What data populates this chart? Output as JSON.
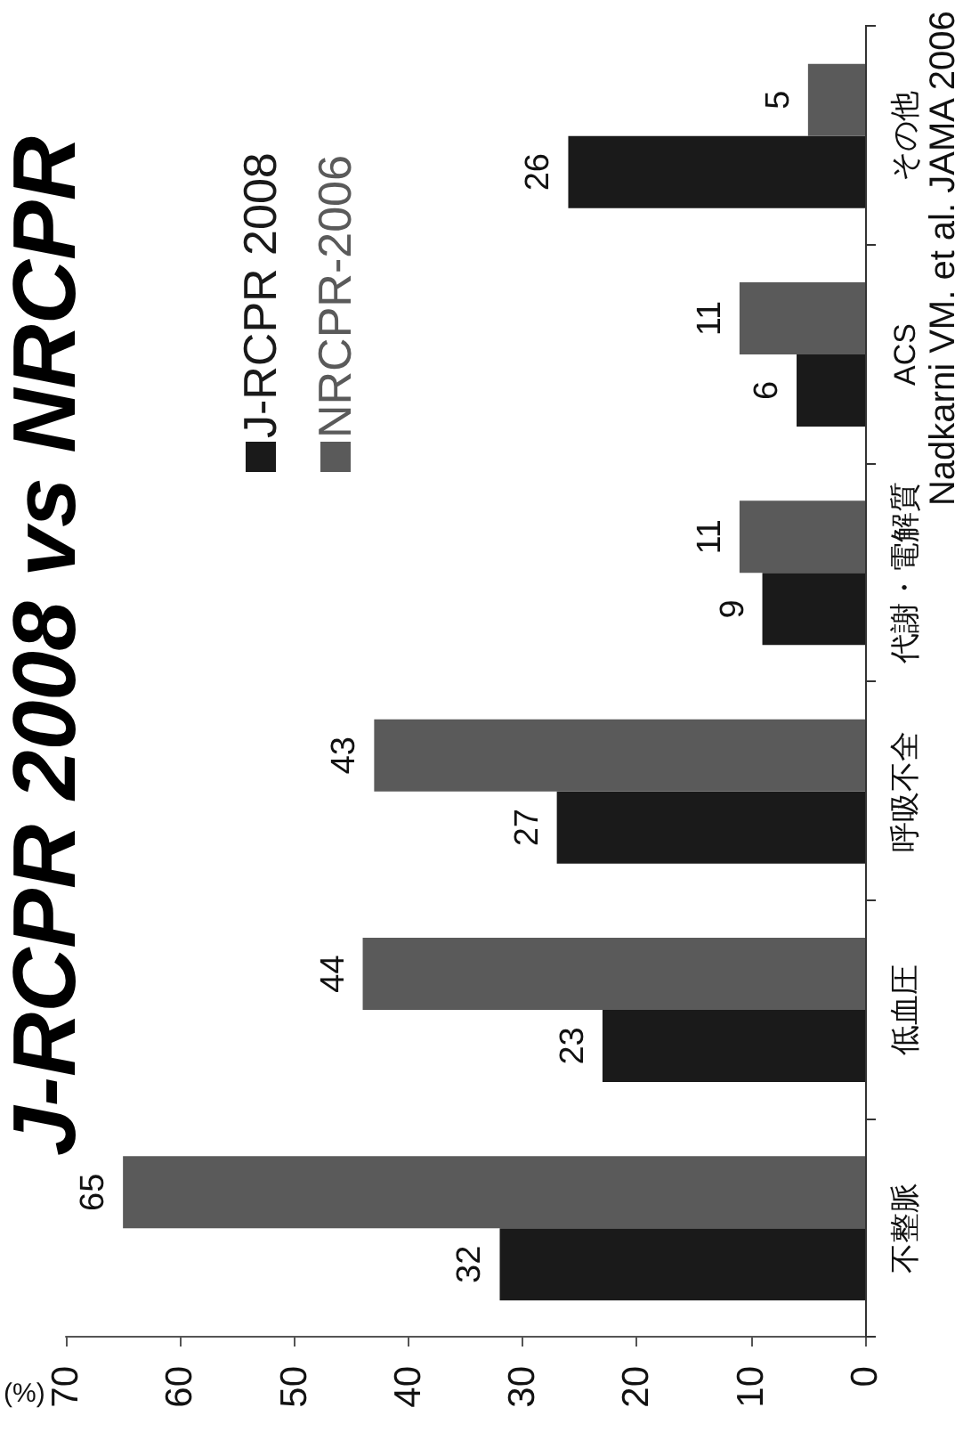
{
  "chart_data": {
    "type": "bar",
    "orientation": "horizontal",
    "title": "J-RCPR 2008 vs NRCPR",
    "xlabel": "(%)",
    "categories": [
      "その他",
      "ACS",
      "代謝・電解質",
      "呼吸不全",
      "低血圧",
      "不整脈"
    ],
    "series": [
      {
        "name": "J-RCPR 2008",
        "color": "#1a1a1a",
        "values": [
          26,
          6,
          9,
          27,
          23,
          32
        ]
      },
      {
        "name": "NRCPR-2006",
        "color": "#5a5a5a",
        "values": [
          5,
          11,
          11,
          43,
          44,
          65
        ]
      }
    ],
    "xlim": [
      70,
      0
    ],
    "xticks": [
      70,
      60,
      50,
      40,
      30,
      20,
      10,
      0
    ],
    "grid": false,
    "legend": "top left",
    "data_labels": true,
    "annotations": [
      "Nadkarni VM. et al. JAMA 2006"
    ]
  }
}
